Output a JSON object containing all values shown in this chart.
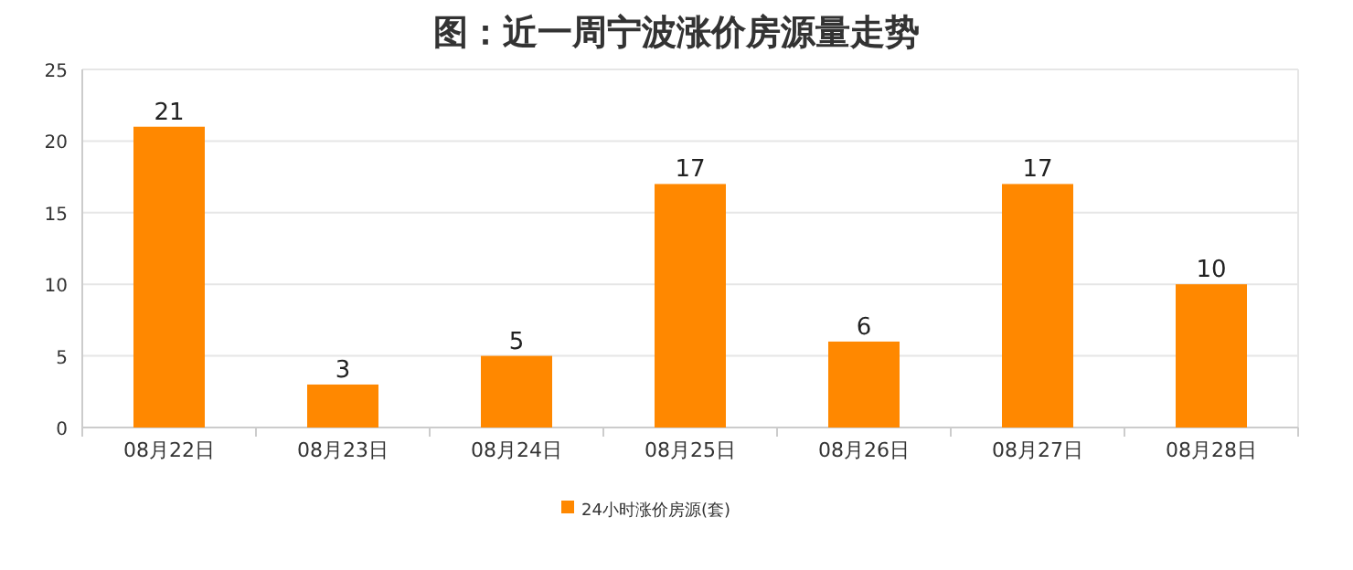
{
  "chart_data": {
    "type": "bar",
    "title": "图：近一周宁波涨价房源量走势",
    "categories": [
      "08月22日",
      "08月23日",
      "08月24日",
      "08月25日",
      "08月26日",
      "08月27日",
      "08月28日"
    ],
    "series": [
      {
        "name": "24小时涨价房源(套)",
        "color": "#ff8800",
        "values": [
          21,
          3,
          5,
          17,
          6,
          17,
          10
        ]
      }
    ],
    "ylim": [
      0,
      25
    ],
    "yticks": [
      0,
      5,
      10,
      15,
      20,
      25
    ],
    "grid": "y",
    "data_labels": true,
    "legend": "bottom"
  }
}
